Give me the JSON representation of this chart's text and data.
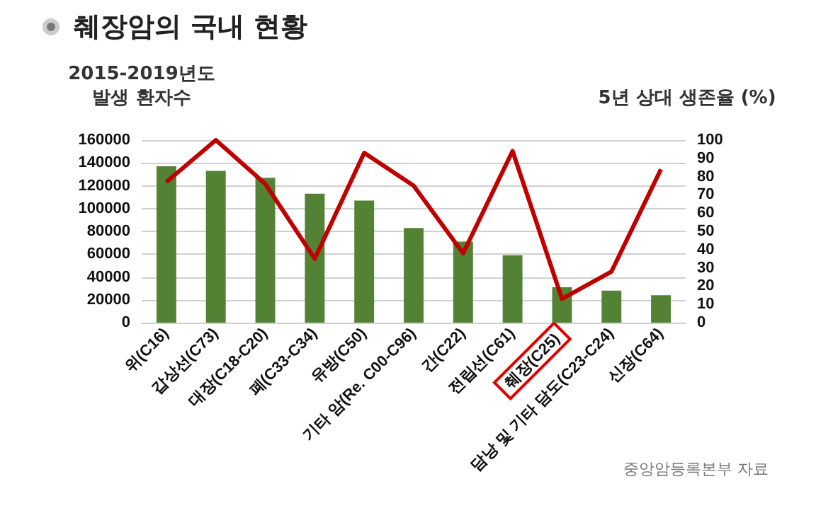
{
  "chart_data": {
    "type": "bar",
    "title": "췌장암의 국내 현황",
    "ylabel": "2015-2019년도\n발생 환자수",
    "y2label": "5년 상대 생존율 (%)",
    "annotations": [
      "중앙암등록본부 자료"
    ],
    "categories": [
      "위(C16)",
      "갑상선(C73)",
      "대장(C18-C20)",
      "폐(C33-C34)",
      "유방(C50)",
      "기타 암(Re. C00-C96)",
      "간(C22)",
      "전립선(C61)",
      "췌장(C25)",
      "담낭 및 기타 담도(C23-C24)",
      "신장(C64)"
    ],
    "series": [
      {
        "color": "#548235",
        "values": [
          137000,
          133000,
          127000,
          113000,
          107000,
          83000,
          71000,
          59000,
          31000,
          28000,
          24000
        ]
      },
      {
        "type": "line",
        "axis": "y2",
        "color": "#c00000",
        "values": [
          77,
          100,
          76,
          35,
          93,
          75,
          38,
          94,
          13,
          28,
          84
        ]
      }
    ],
    "ylim": [
      0,
      160000
    ],
    "yticks": [
      0,
      20000,
      40000,
      60000,
      80000,
      100000,
      120000,
      140000,
      160000
    ],
    "y2lim": [
      0,
      100
    ],
    "y2ticks": [
      0,
      10,
      20,
      30,
      40,
      50,
      60,
      70,
      80,
      90,
      100
    ],
    "grid": "y",
    "marker": "none",
    "line_style": "solid"
  }
}
